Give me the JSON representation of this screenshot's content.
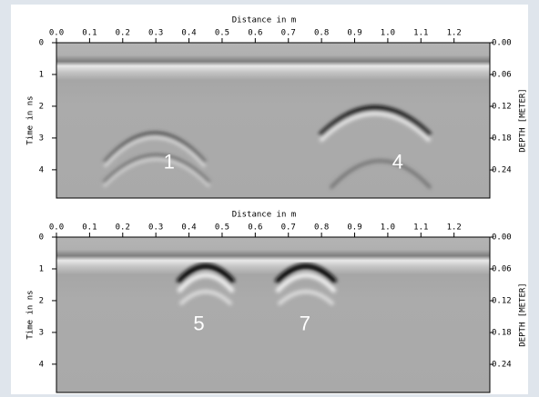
{
  "chart_data": [
    {
      "type": "radargram",
      "title": "Distance in m",
      "ylabel": "Time in ns",
      "y2label": "DEPTH [METER]",
      "xlim": [
        0,
        1.308
      ],
      "xticks": [
        {
          "value": 0,
          "label": "0.0"
        },
        {
          "value": 0.1,
          "label": "0.1"
        },
        {
          "value": 0.2,
          "label": "0.2"
        },
        {
          "value": 0.3,
          "label": "0.3"
        },
        {
          "value": 0.4,
          "label": "0.4"
        },
        {
          "value": 0.5,
          "label": "0.5"
        },
        {
          "value": 0.6,
          "label": "0.6"
        },
        {
          "value": 0.7,
          "label": "0.7"
        },
        {
          "value": 0.8,
          "label": "0.8"
        },
        {
          "value": 0.9,
          "label": "0.9"
        },
        {
          "value": 1.0,
          "label": "1.0"
        },
        {
          "value": 1.1,
          "label": "1.1"
        },
        {
          "value": 1.2,
          "label": "1.2"
        }
      ],
      "ylim": [
        0,
        4.89
      ],
      "yticks": [
        0,
        1,
        2,
        3,
        4
      ],
      "y2lim": [
        0,
        0.293
      ],
      "y2ticks": [
        {
          "value": 0,
          "label": "0.00"
        },
        {
          "value": 0.06,
          "label": "0.06"
        },
        {
          "value": 0.12,
          "label": "0.12"
        },
        {
          "value": 0.18,
          "label": "0.18"
        },
        {
          "value": 0.24,
          "label": "0.24"
        }
      ],
      "annotations": [
        {
          "text": "1",
          "x": 0.34,
          "y": 3.8
        },
        {
          "text": "4",
          "x": 1.03,
          "y": 3.8
        }
      ]
    },
    {
      "type": "radargram",
      "title": "Distance in m",
      "ylabel": "Time in ns",
      "y2label": "DEPTH [METER]",
      "xlim": [
        0,
        1.308
      ],
      "xticks": [
        {
          "value": 0,
          "label": "0.0"
        },
        {
          "value": 0.1,
          "label": "0.1"
        },
        {
          "value": 0.2,
          "label": "0.2"
        },
        {
          "value": 0.3,
          "label": "0.3"
        },
        {
          "value": 0.4,
          "label": "0.4"
        },
        {
          "value": 0.5,
          "label": "0.5"
        },
        {
          "value": 0.6,
          "label": "0.6"
        },
        {
          "value": 0.7,
          "label": "0.7"
        },
        {
          "value": 0.8,
          "label": "0.8"
        },
        {
          "value": 0.9,
          "label": "0.9"
        },
        {
          "value": 1.0,
          "label": "1.0"
        },
        {
          "value": 1.1,
          "label": "1.1"
        },
        {
          "value": 1.2,
          "label": "1.2"
        }
      ],
      "ylim": [
        0,
        4.89
      ],
      "yticks": [
        0,
        1,
        2,
        3,
        4
      ],
      "y2lim": [
        0,
        0.293
      ],
      "y2ticks": [
        {
          "value": 0,
          "label": "0.00"
        },
        {
          "value": 0.06,
          "label": "0.06"
        },
        {
          "value": 0.12,
          "label": "0.12"
        },
        {
          "value": 0.18,
          "label": "0.18"
        },
        {
          "value": 0.24,
          "label": "0.24"
        }
      ],
      "annotations": [
        {
          "text": "5",
          "x": 0.43,
          "y": 2.77
        },
        {
          "text": "7",
          "x": 0.75,
          "y": 2.77
        }
      ]
    }
  ]
}
